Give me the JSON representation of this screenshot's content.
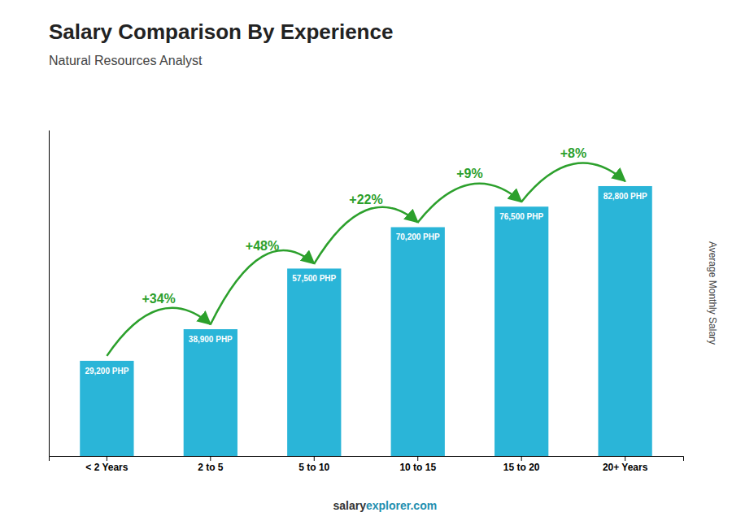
{
  "chart_data": {
    "type": "bar",
    "title": "Salary Comparison By Experience",
    "subtitle": "Natural Resources Analyst",
    "y_label": "Average Monthly Salary",
    "categories": [
      "< 2 Years",
      "2 to 5",
      "5 to 10",
      "10 to 15",
      "15 to 20",
      "20+ Years"
    ],
    "values": [
      29200,
      38900,
      57500,
      70200,
      76500,
      82800
    ],
    "value_labels": [
      "29,200 PHP",
      "38,900 PHP",
      "57,500 PHP",
      "70,200 PHP",
      "76,500 PHP",
      "82,800 PHP"
    ],
    "data_labels": true,
    "color": "#2ab5d8",
    "ylim": [
      0,
      100000
    ],
    "tick_labels": "x",
    "grid": false,
    "annotations": [
      {
        "text": "+34%",
        "from": "< 2 Years",
        "to": "2 to 5"
      },
      {
        "text": "+48%",
        "from": "2 to 5",
        "to": "5 to 10"
      },
      {
        "text": "+22%",
        "from": "5 to 10",
        "to": "10 to 15"
      },
      {
        "text": "+9%",
        "from": "10 to 15",
        "to": "15 to 20"
      },
      {
        "text": "+8%",
        "from": "15 to 20",
        "to": "20+ Years"
      }
    ],
    "footer": [
      "salary",
      "explorer.com"
    ]
  }
}
